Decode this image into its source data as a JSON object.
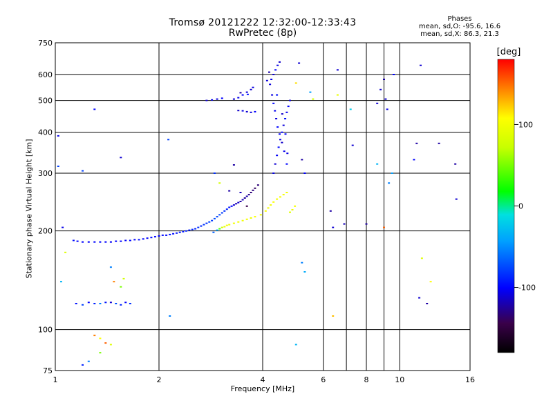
{
  "header": {
    "title": "Tromsø 20121222 12:32:00-12:33:43",
    "subtitle": "RwPretec (8p)",
    "stats_title": "Phases",
    "stats_line_o": "mean, sd,O: -95.6, 16.6",
    "stats_line_x": "mean, sd,X:  86.3, 21.3"
  },
  "colorbar": {
    "unit_label": "[deg]",
    "tick_labels": [
      "100",
      "0",
      "-100"
    ],
    "range": [
      -180,
      180
    ]
  },
  "chart_data": {
    "type": "scatter",
    "title": "Tromsø 20121222 12:32:00-12:33:43",
    "subtitle": "RwPretec (8p)",
    "xlabel": "Frequency [MHz]",
    "ylabel": "Stationary phase Virtual Height [km]",
    "x_scale": "log",
    "y_scale": "log",
    "xlim": [
      1,
      16
    ],
    "ylim": [
      75,
      750
    ],
    "x_ticks": [
      1,
      2,
      4,
      6,
      8,
      10,
      16
    ],
    "x_tick_labels": [
      "1",
      "2",
      "4",
      "6",
      "8",
      "10",
      "16"
    ],
    "x_minor_ticks": [
      7,
      9
    ],
    "y_ticks": [
      75,
      100,
      200,
      300,
      400,
      500,
      600,
      750
    ],
    "y_tick_labels": [
      "75",
      "100",
      "200",
      "300",
      "400",
      "500",
      "600",
      "750"
    ],
    "grid": true,
    "color_scale": "phase [deg], rainbow from black (-180) through blue (-100), cyan, green (0), yellow (100) to red (180)",
    "series": [
      {
        "points": [
          [
            1.13,
            187,
            -97
          ],
          [
            1.16,
            186,
            -99
          ],
          [
            1.2,
            185,
            -100
          ],
          [
            1.25,
            185,
            -101
          ],
          [
            1.3,
            185,
            -99
          ],
          [
            1.35,
            185,
            -98
          ],
          [
            1.4,
            185,
            -100
          ],
          [
            1.45,
            185,
            -102
          ],
          [
            1.5,
            186,
            -100
          ],
          [
            1.55,
            186,
            -99
          ],
          [
            1.6,
            187,
            -101
          ],
          [
            1.65,
            187,
            -98
          ],
          [
            1.7,
            188,
            -100
          ],
          [
            1.75,
            188,
            -97
          ],
          [
            1.8,
            189,
            -99
          ],
          [
            1.85,
            190,
            -100
          ],
          [
            1.9,
            191,
            -96
          ],
          [
            1.95,
            192,
            -99
          ],
          [
            2.0,
            193,
            -100
          ],
          [
            2.05,
            194,
            -97
          ],
          [
            2.1,
            194,
            -98
          ],
          [
            2.15,
            195,
            -95
          ],
          [
            2.2,
            196,
            -97
          ],
          [
            2.25,
            197,
            -94
          ],
          [
            2.3,
            198,
            -92
          ],
          [
            2.35,
            199,
            -93
          ],
          [
            2.4,
            200,
            -90
          ],
          [
            2.45,
            201,
            -92
          ],
          [
            2.5,
            202,
            -88
          ],
          [
            2.55,
            203,
            -90
          ],
          [
            2.6,
            205,
            -86
          ],
          [
            2.65,
            207,
            -88
          ],
          [
            2.7,
            209,
            -84
          ],
          [
            2.75,
            211,
            -86
          ],
          [
            2.8,
            213,
            -80
          ],
          [
            2.85,
            215,
            -82
          ],
          [
            2.9,
            218,
            -76
          ],
          [
            2.95,
            221,
            -79
          ],
          [
            3.0,
            224,
            -78
          ],
          [
            3.05,
            227,
            -82
          ],
          [
            3.1,
            230,
            -85
          ],
          [
            3.15,
            233,
            -90
          ],
          [
            3.2,
            236,
            -95
          ],
          [
            3.25,
            238,
            -100
          ],
          [
            3.3,
            240,
            -110
          ],
          [
            3.35,
            242,
            -118
          ],
          [
            3.4,
            244,
            -112
          ],
          [
            3.45,
            246,
            -120
          ],
          [
            3.5,
            249,
            -115
          ],
          [
            3.55,
            252,
            -122
          ],
          [
            3.6,
            255,
            -118
          ],
          [
            3.65,
            258,
            -125
          ],
          [
            3.7,
            262,
            -130
          ],
          [
            3.75,
            266,
            -128
          ],
          [
            3.8,
            270,
            -135
          ],
          [
            3.88,
            276,
            -130
          ],
          [
            2.88,
            198,
            -70
          ],
          [
            2.95,
            201,
            -45
          ],
          [
            3.0,
            203,
            20
          ],
          [
            3.05,
            205,
            55
          ],
          [
            3.1,
            206,
            80
          ],
          [
            3.15,
            208,
            90
          ],
          [
            3.2,
            209,
            85
          ],
          [
            3.3,
            211,
            88
          ],
          [
            3.4,
            213,
            92
          ],
          [
            3.5,
            215,
            86
          ],
          [
            3.6,
            217,
            90
          ],
          [
            3.7,
            219,
            84
          ],
          [
            3.8,
            221,
            95
          ],
          [
            3.95,
            224,
            90
          ],
          [
            4.08,
            230,
            95
          ],
          [
            4.15,
            235,
            92
          ],
          [
            4.22,
            240,
            88
          ],
          [
            4.3,
            245,
            96
          ],
          [
            4.4,
            250,
            90
          ],
          [
            4.5,
            254,
            94
          ],
          [
            4.6,
            258,
            90
          ],
          [
            4.7,
            262,
            88
          ],
          [
            4.8,
            228,
            70
          ],
          [
            4.88,
            232,
            85
          ],
          [
            4.96,
            238,
            90
          ],
          [
            4.3,
            300,
            -105
          ],
          [
            4.35,
            320,
            -110
          ],
          [
            4.4,
            340,
            -102
          ],
          [
            4.45,
            360,
            -98
          ],
          [
            4.5,
            380,
            -106
          ],
          [
            4.55,
            400,
            -100
          ],
          [
            4.6,
            420,
            -108
          ],
          [
            4.65,
            440,
            -96
          ],
          [
            4.7,
            460,
            -104
          ],
          [
            4.75,
            480,
            -100
          ],
          [
            4.8,
            500,
            -110
          ],
          [
            4.7,
            320,
            -98
          ],
          [
            4.62,
            350,
            -104
          ],
          [
            4.55,
            372,
            -112
          ],
          [
            4.48,
            395,
            -101
          ],
          [
            4.42,
            415,
            -99
          ],
          [
            4.38,
            440,
            -108
          ],
          [
            4.34,
            465,
            -103
          ],
          [
            4.3,
            490,
            -100
          ],
          [
            4.26,
            520,
            -107
          ],
          [
            4.4,
            520,
            -96
          ],
          [
            4.56,
            455,
            -112
          ],
          [
            4.66,
            395,
            -99
          ],
          [
            4.72,
            345,
            -106
          ],
          [
            4.2,
            560,
            -108
          ],
          [
            4.24,
            580,
            -104
          ],
          [
            4.3,
            600,
            -110
          ],
          [
            4.36,
            620,
            -100
          ],
          [
            4.42,
            640,
            -106
          ],
          [
            4.48,
            655,
            -112
          ],
          [
            4.12,
            575,
            -108
          ],
          [
            4.18,
            610,
            -118
          ],
          [
            3.3,
            505,
            -110
          ],
          [
            3.4,
            510,
            -104
          ],
          [
            3.5,
            520,
            -100
          ],
          [
            3.6,
            530,
            -108
          ],
          [
            3.7,
            540,
            -112
          ],
          [
            3.75,
            548,
            -106
          ],
          [
            3.45,
            528,
            -120
          ],
          [
            3.62,
            522,
            -95
          ],
          [
            3.5,
            465,
            -105
          ],
          [
            3.6,
            462,
            -110
          ],
          [
            3.7,
            460,
            -108
          ],
          [
            3.8,
            462,
            -100
          ],
          [
            3.4,
            466,
            -112
          ],
          [
            2.75,
            500,
            -110
          ],
          [
            2.85,
            502,
            -104
          ],
          [
            2.95,
            505,
            -108
          ],
          [
            3.05,
            508,
            -100
          ],
          [
            1.15,
            120,
            -95
          ],
          [
            1.2,
            119,
            -80
          ],
          [
            1.25,
            121,
            -100
          ],
          [
            1.3,
            120,
            -90
          ],
          [
            1.35,
            120,
            -60
          ],
          [
            1.4,
            121,
            -95
          ],
          [
            1.45,
            121,
            -110
          ],
          [
            1.5,
            120,
            -75
          ],
          [
            1.55,
            119,
            -90
          ],
          [
            1.6,
            121,
            -100
          ],
          [
            1.65,
            120,
            -85
          ],
          [
            1.3,
            96,
            140
          ],
          [
            1.35,
            94,
            100
          ],
          [
            1.4,
            91,
            150
          ],
          [
            1.45,
            90,
            70
          ],
          [
            1.35,
            85,
            30
          ],
          [
            1.25,
            80,
            -60
          ],
          [
            1.2,
            78,
            -90
          ],
          [
            1.48,
            140,
            140
          ],
          [
            1.55,
            135,
            30
          ],
          [
            1.58,
            143,
            60
          ],
          [
            1.45,
            155,
            -60
          ],
          [
            1.3,
            470,
            -100
          ],
          [
            1.2,
            305,
            -80
          ],
          [
            1.55,
            335,
            -110
          ],
          [
            1.02,
            390,
            -105
          ],
          [
            1.02,
            315,
            -80
          ],
          [
            1.05,
            205,
            -105
          ],
          [
            1.07,
            172,
            70
          ],
          [
            1.04,
            140,
            -40
          ],
          [
            2.13,
            380,
            -80
          ],
          [
            2.15,
            110,
            -60
          ],
          [
            2.9,
            300,
            -85
          ],
          [
            3.0,
            280,
            60
          ],
          [
            3.2,
            265,
            -120
          ],
          [
            3.3,
            318,
            -120
          ],
          [
            3.45,
            262,
            -115
          ],
          [
            3.6,
            238,
            -140
          ],
          [
            5.0,
            565,
            110
          ],
          [
            5.1,
            650,
            -110
          ],
          [
            5.3,
            300,
            -100
          ],
          [
            5.2,
            330,
            -120
          ],
          [
            5.2,
            160,
            -60
          ],
          [
            5.3,
            150,
            -45
          ],
          [
            5.5,
            530,
            -50
          ],
          [
            5.6,
            505,
            60
          ],
          [
            5.0,
            90,
            -40
          ],
          [
            6.3,
            230,
            -120
          ],
          [
            6.4,
            205,
            -110
          ],
          [
            6.6,
            520,
            80
          ],
          [
            6.4,
            110,
            120
          ],
          [
            6.6,
            620,
            -110
          ],
          [
            6.9,
            210,
            -115
          ],
          [
            7.2,
            470,
            -30
          ],
          [
            7.3,
            365,
            -110
          ],
          [
            8.0,
            210,
            -120
          ],
          [
            8.6,
            490,
            -110
          ],
          [
            8.8,
            540,
            -110
          ],
          [
            8.6,
            320,
            -40
          ],
          [
            9.0,
            205,
            150
          ],
          [
            9.2,
            470,
            -105
          ],
          [
            9.6,
            600,
            -100
          ],
          [
            9.0,
            580,
            -120
          ],
          [
            9.1,
            505,
            -110
          ],
          [
            9.3,
            280,
            -60
          ],
          [
            9.5,
            300,
            -50
          ],
          [
            11.0,
            330,
            -100
          ],
          [
            11.2,
            370,
            -120
          ],
          [
            11.5,
            640,
            -110
          ],
          [
            11.4,
            125,
            -110
          ],
          [
            11.6,
            165,
            70
          ],
          [
            12.0,
            120,
            -120
          ],
          [
            12.3,
            140,
            100
          ],
          [
            13.0,
            370,
            -120
          ],
          [
            14.5,
            320,
            -120
          ],
          [
            14.6,
            250,
            -110
          ]
        ]
      }
    ]
  }
}
